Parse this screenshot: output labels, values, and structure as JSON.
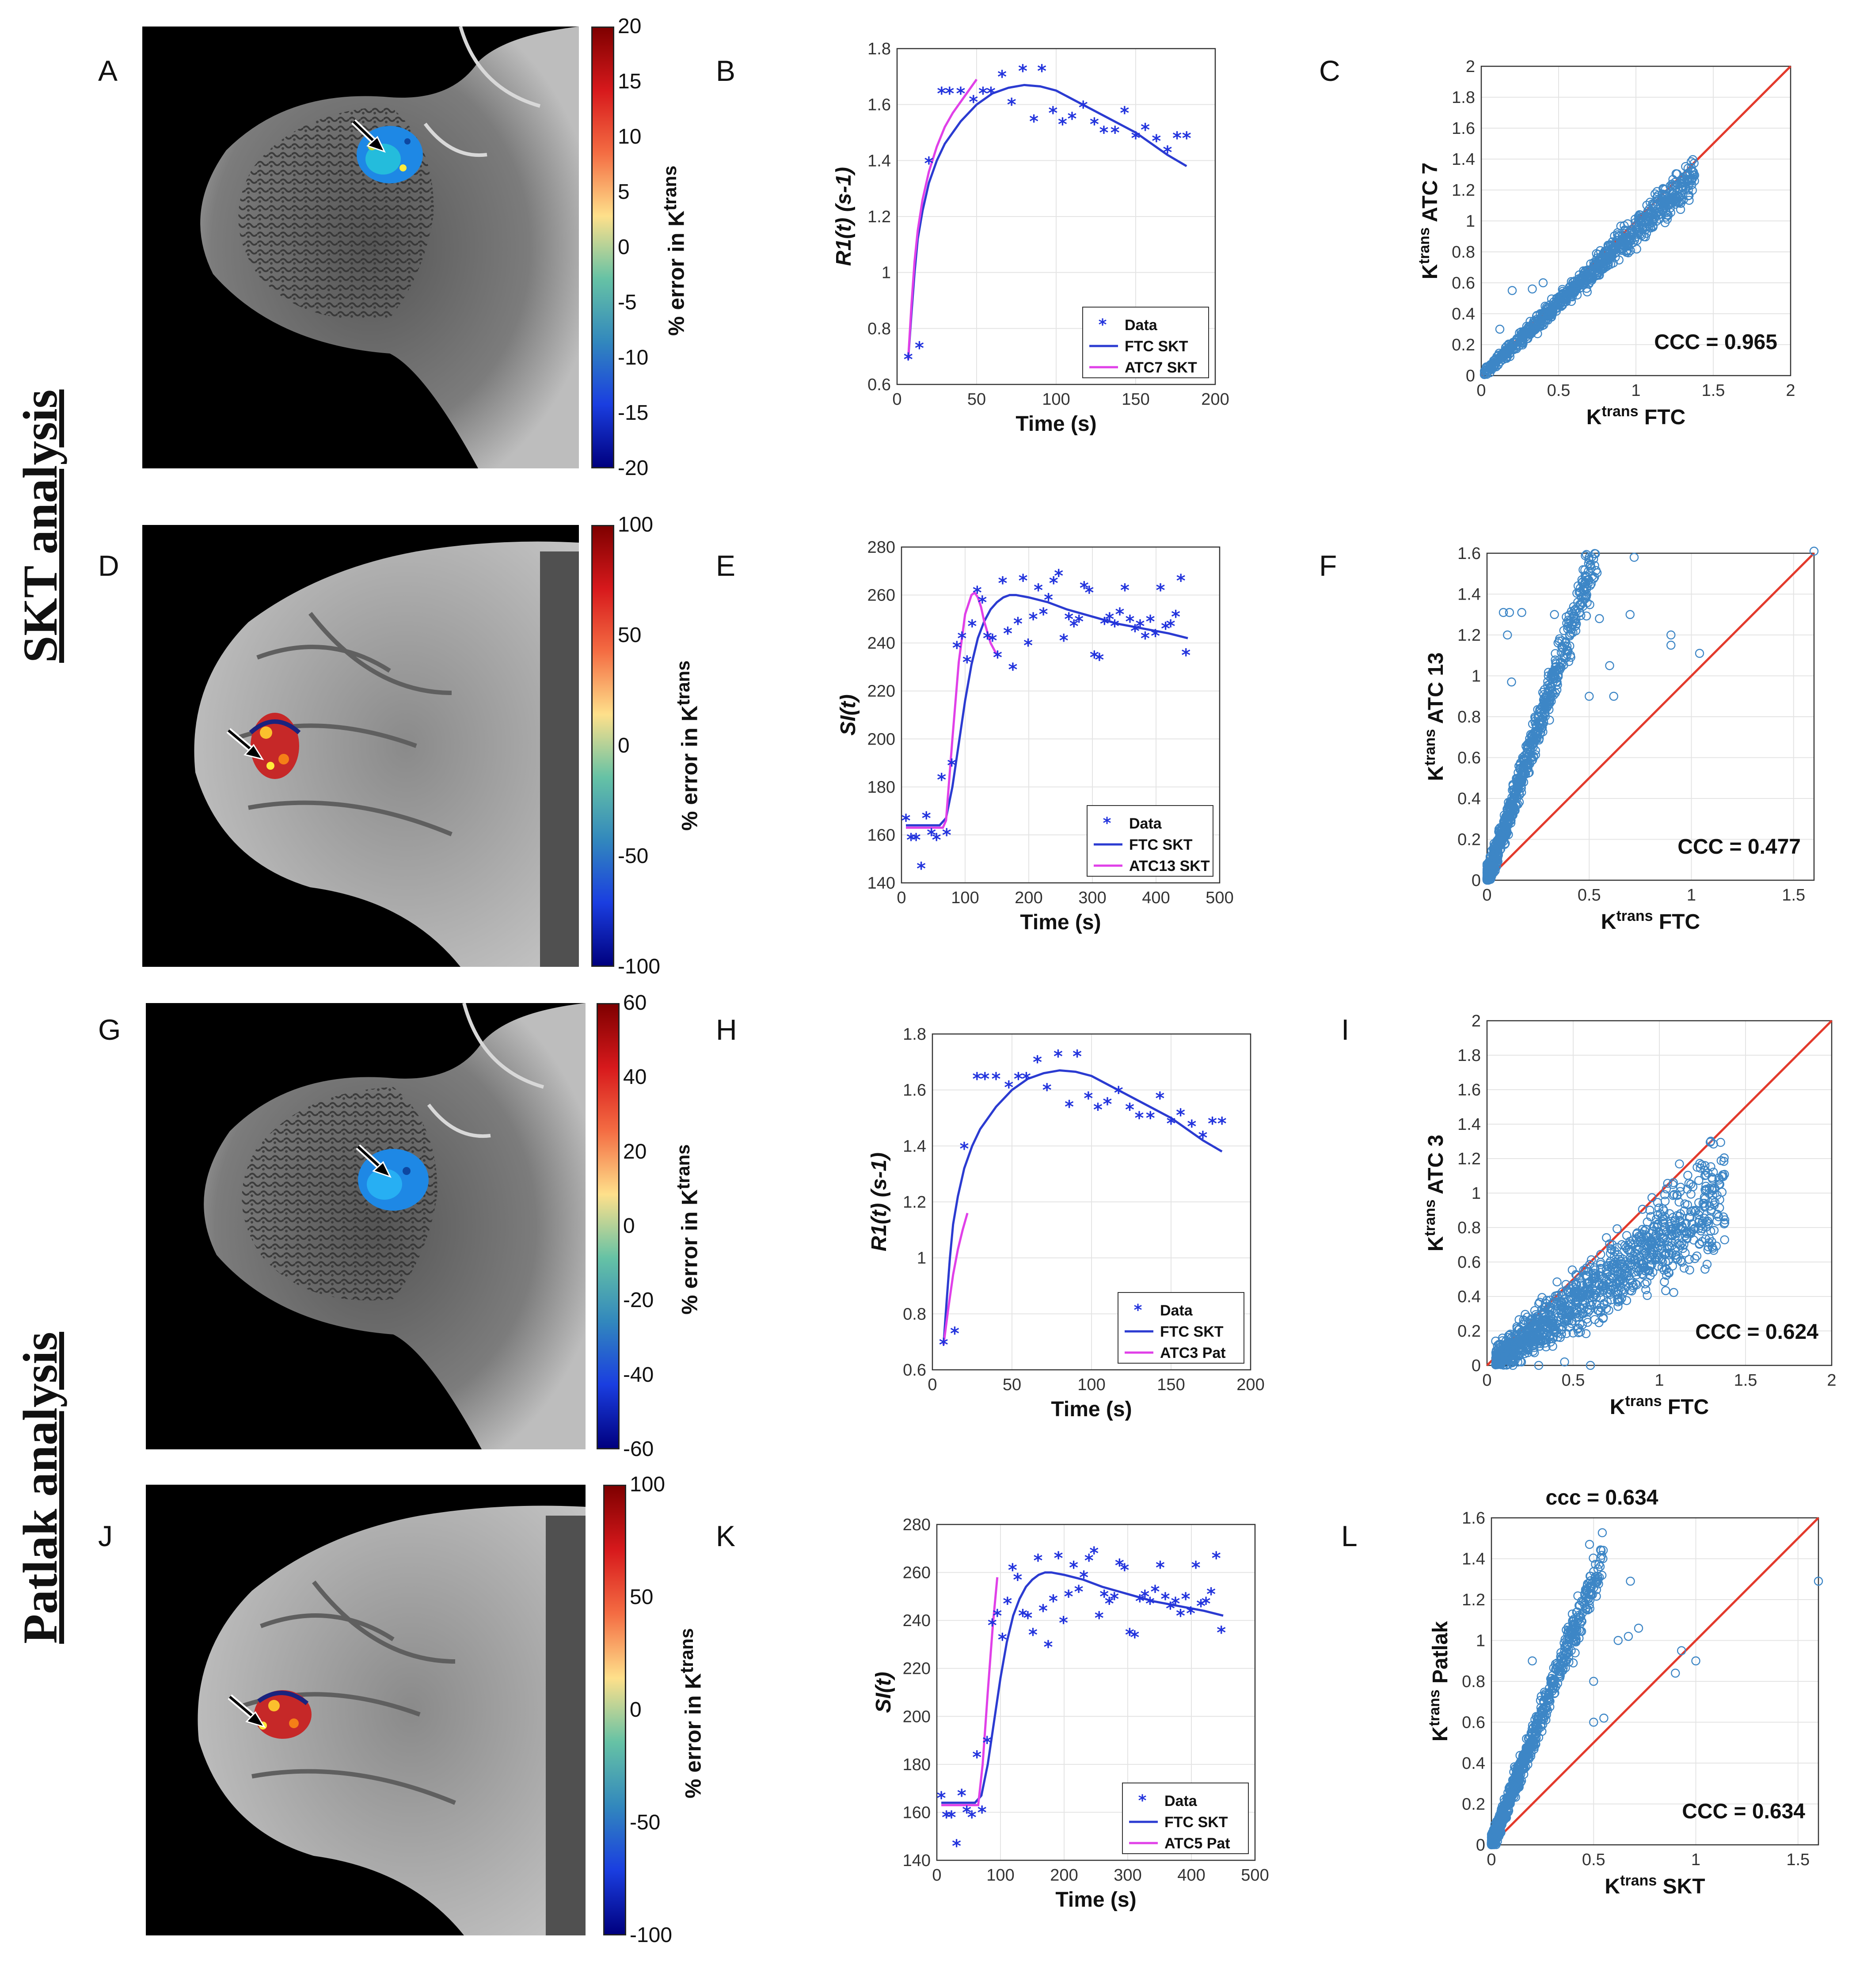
{
  "panel_letters": [
    "A",
    "B",
    "C",
    "D",
    "E",
    "F",
    "G",
    "H",
    "I",
    "J",
    "K",
    "L"
  ],
  "row_labels": {
    "skt": "SKT analysis",
    "patlak": "Patlak analysis"
  },
  "colorbars": [
    {
      "ticks": [
        "20",
        "15",
        "10",
        "5",
        "0",
        "-5",
        "-10",
        "-15",
        "-20"
      ],
      "label": "% error in K",
      "label_sup": "trans"
    },
    {
      "ticks": [
        "100",
        "50",
        "0",
        "-50",
        "-100"
      ],
      "label": "% error in K",
      "label_sup": "trans"
    },
    {
      "ticks": [
        "60",
        "40",
        "20",
        "0",
        "-20",
        "-40",
        "-60"
      ],
      "label": "% error in K",
      "label_sup": "trans"
    },
    {
      "ticks": [
        "100",
        "50",
        "0",
        "-50",
        "-100"
      ],
      "label": "% error in K",
      "label_sup": "trans"
    }
  ],
  "colors": {
    "data": "#2233dd",
    "ftc": "#2b3bd1",
    "atc": "#e040e8",
    "scatter": "#3d86c6",
    "identity": "#e33a2c"
  },
  "icons": [
    "arrow-icon",
    "mri-breast-image"
  ],
  "chart_data": [
    {
      "id": "B",
      "type": "line",
      "xlabel": "Time (s)",
      "ylabel": "R1(t) (s-1)",
      "xlim": [
        0,
        200
      ],
      "ylim": [
        0.6,
        1.8
      ],
      "xticks": [
        0,
        50,
        100,
        150,
        200
      ],
      "yticks": [
        0.6,
        0.8,
        1,
        1.2,
        1.4,
        1.6,
        1.8
      ],
      "legend": [
        "Data",
        "FTC SKT",
        "ATC7 SKT"
      ],
      "points_x": [
        7,
        14,
        20,
        28,
        33,
        40,
        48,
        54,
        59,
        66,
        72,
        79,
        86,
        91,
        98,
        104,
        110,
        117,
        124,
        130,
        137,
        143,
        150,
        156,
        163,
        170,
        176,
        182
      ],
      "points_y": [
        0.69,
        0.73,
        1.39,
        1.64,
        1.64,
        1.64,
        1.61,
        1.64,
        1.64,
        1.7,
        1.6,
        1.72,
        1.54,
        1.72,
        1.57,
        1.53,
        1.55,
        1.59,
        1.53,
        1.5,
        1.5,
        1.57,
        1.48,
        1.51,
        1.47,
        1.43,
        1.48,
        1.48
      ],
      "ftc_x": [
        7,
        9,
        11,
        13,
        16,
        20,
        25,
        30,
        40,
        50,
        60,
        70,
        80,
        90,
        100,
        110,
        120,
        130,
        140,
        150,
        160,
        170,
        182
      ],
      "ftc_y": [
        0.69,
        0.85,
        1.0,
        1.12,
        1.22,
        1.32,
        1.4,
        1.46,
        1.54,
        1.6,
        1.64,
        1.66,
        1.67,
        1.665,
        1.65,
        1.62,
        1.59,
        1.56,
        1.53,
        1.5,
        1.46,
        1.42,
        1.38
      ],
      "atc_x": [
        7,
        9,
        11,
        13,
        16,
        20,
        25,
        30,
        35,
        40,
        45,
        50
      ],
      "atc_y": [
        0.69,
        0.88,
        1.04,
        1.15,
        1.26,
        1.36,
        1.45,
        1.52,
        1.57,
        1.61,
        1.65,
        1.69
      ]
    },
    {
      "id": "C",
      "type": "scatter",
      "xlabel": "K",
      "xlabel_sup": "trans",
      "xlabel_tail": " FTC",
      "ylabel": "K",
      "ylabel_sup": "trans",
      "ylabel_tail": " ATC 7",
      "xlim": [
        0,
        2
      ],
      "ylim": [
        0,
        2
      ],
      "xticks": [
        0,
        0.5,
        1,
        1.5,
        2
      ],
      "yticks": [
        0,
        0.2,
        0.4,
        0.6,
        0.8,
        1,
        1.2,
        1.4,
        1.6,
        1.8,
        2
      ],
      "ccc": "CCC = 0.965",
      "seed": 11,
      "n": 800,
      "xmax": 1.38,
      "xmin": 0.02,
      "xpower": 1.0,
      "slope": 0.94,
      "noise": 0.035,
      "outliers": [
        [
          0.12,
          0.3
        ],
        [
          0.2,
          0.55
        ],
        [
          0.4,
          0.6
        ],
        [
          0.33,
          0.56
        ]
      ]
    },
    {
      "id": "E",
      "type": "line",
      "xlabel": "Time (s)",
      "ylabel": "SI(t)",
      "xlim": [
        0,
        500
      ],
      "ylim": [
        140,
        280
      ],
      "xticks": [
        0,
        100,
        200,
        300,
        400,
        500
      ],
      "yticks": [
        140,
        160,
        180,
        200,
        220,
        240,
        260,
        280
      ],
      "legend": [
        "Data",
        "FTC SKT",
        "ATC13 SKT"
      ],
      "points_x": [
        7,
        15,
        23,
        31,
        39,
        47,
        55,
        63,
        71,
        79,
        87,
        95,
        103,
        111,
        119,
        127,
        135,
        143,
        151,
        159,
        167,
        175,
        183,
        191,
        199,
        207,
        215,
        223,
        231,
        239,
        247,
        255,
        263,
        271,
        279,
        287,
        295,
        303,
        311,
        319,
        327,
        335,
        343,
        351,
        359,
        367,
        375,
        383,
        391,
        399,
        407,
        415,
        423,
        431,
        439,
        447
      ],
      "points_y": [
        166,
        158,
        158,
        146,
        167,
        160,
        158,
        183,
        160,
        189,
        238,
        242,
        232,
        247,
        261,
        257,
        242,
        241,
        234,
        265,
        244,
        229,
        248,
        266,
        239,
        250,
        262,
        252,
        258,
        265,
        268,
        241,
        250,
        247,
        249,
        263,
        261,
        234,
        233,
        248,
        250,
        247,
        252,
        262,
        249,
        245,
        247,
        242,
        249,
        243,
        262,
        246,
        247,
        251,
        266,
        235
      ],
      "ftc_x": [
        7,
        40,
        60,
        70,
        80,
        90,
        100,
        110,
        120,
        130,
        140,
        150,
        160,
        170,
        180,
        200,
        230,
        260,
        300,
        340,
        380,
        420,
        450
      ],
      "ftc_y": [
        164,
        164,
        164,
        167,
        180,
        198,
        216,
        231,
        242,
        249,
        254,
        257,
        259,
        260,
        260,
        259,
        257,
        254,
        251,
        248,
        246,
        244,
        242
      ],
      "atc_x": [
        7,
        40,
        65,
        70,
        80,
        90,
        100,
        110,
        115,
        120,
        125,
        130,
        140,
        150
      ],
      "atc_y": [
        163,
        163,
        163,
        166,
        200,
        232,
        252,
        260,
        261,
        259,
        255,
        249,
        240,
        235
      ]
    },
    {
      "id": "F",
      "type": "scatter",
      "xlabel": "K",
      "xlabel_sup": "trans",
      "xlabel_tail": " FTC",
      "ylabel": "K",
      "ylabel_sup": "trans",
      "ylabel_tail": " ATC 13",
      "xlim": [
        0,
        1.6
      ],
      "ylim": [
        0,
        1.6
      ],
      "xticks": [
        0,
        0.5,
        1,
        1.5
      ],
      "yticks": [
        0,
        0.2,
        0.4,
        0.6,
        0.8,
        1,
        1.2,
        1.4,
        1.6
      ],
      "ccc": "CCC = 0.477",
      "seed": 23,
      "n": 900,
      "xmax": 0.55,
      "xmin": 0.0,
      "xpower": 2.4,
      "slope": 3.0,
      "noise": 0.07,
      "outliers": [
        [
          0.72,
          1.58
        ],
        [
          1.6,
          1.61
        ],
        [
          0.08,
          1.31
        ],
        [
          0.11,
          1.31
        ],
        [
          0.17,
          1.31
        ],
        [
          0.33,
          1.3
        ],
        [
          0.55,
          1.28
        ],
        [
          0.9,
          1.2
        ],
        [
          0.9,
          1.15
        ],
        [
          1.04,
          1.11
        ],
        [
          0.4,
          1.07
        ],
        [
          0.6,
          1.05
        ],
        [
          0.1,
          1.2
        ],
        [
          0.3,
          1.0
        ],
        [
          0.7,
          1.3
        ],
        [
          0.62,
          0.9
        ],
        [
          0.5,
          0.9
        ],
        [
          0.12,
          0.97
        ]
      ]
    },
    {
      "id": "H",
      "type": "line",
      "xlabel": "Time (s)",
      "ylabel": "R1(t) (s-1)",
      "xlim": [
        0,
        200
      ],
      "ylim": [
        0.6,
        1.8
      ],
      "xticks": [
        0,
        50,
        100,
        150,
        200
      ],
      "yticks": [
        0.6,
        0.8,
        1,
        1.2,
        1.4,
        1.6,
        1.8
      ],
      "legend": [
        "Data",
        "FTC SKT",
        "ATC3 Pat"
      ],
      "points_x": [
        7,
        14,
        20,
        28,
        33,
        40,
        48,
        54,
        59,
        66,
        72,
        79,
        86,
        91,
        98,
        104,
        110,
        117,
        124,
        130,
        137,
        143,
        150,
        156,
        163,
        170,
        176,
        182
      ],
      "points_y": [
        0.69,
        0.73,
        1.39,
        1.64,
        1.64,
        1.64,
        1.61,
        1.64,
        1.64,
        1.7,
        1.6,
        1.72,
        1.54,
        1.72,
        1.57,
        1.53,
        1.55,
        1.59,
        1.53,
        1.5,
        1.5,
        1.57,
        1.48,
        1.51,
        1.47,
        1.43,
        1.48,
        1.48
      ],
      "ftc_x": [
        7,
        9,
        11,
        13,
        16,
        20,
        25,
        30,
        40,
        50,
        60,
        70,
        80,
        90,
        100,
        110,
        120,
        130,
        140,
        150,
        160,
        170,
        182
      ],
      "ftc_y": [
        0.69,
        0.85,
        1.0,
        1.12,
        1.22,
        1.32,
        1.4,
        1.46,
        1.54,
        1.6,
        1.64,
        1.66,
        1.67,
        1.665,
        1.65,
        1.62,
        1.59,
        1.56,
        1.53,
        1.5,
        1.46,
        1.42,
        1.38
      ],
      "atc_x": [
        7,
        10,
        13,
        16,
        19,
        22
      ],
      "atc_y": [
        0.69,
        0.82,
        0.94,
        1.03,
        1.1,
        1.16
      ]
    },
    {
      "id": "I",
      "type": "scatter",
      "xlabel": "K",
      "xlabel_sup": "trans",
      "xlabel_tail": " FTC",
      "ylabel": "K",
      "ylabel_sup": "trans",
      "ylabel_tail": " ATC 3",
      "xlim": [
        0,
        2
      ],
      "ylim": [
        0,
        2
      ],
      "xticks": [
        0,
        0.5,
        1,
        1.5,
        2
      ],
      "yticks": [
        0,
        0.2,
        0.4,
        0.6,
        0.8,
        1,
        1.2,
        1.4,
        1.6,
        1.8,
        2
      ],
      "ccc": "CCC = 0.624",
      "seed": 37,
      "n": 1100,
      "xmax": 1.38,
      "xmin": 0.05,
      "xpower": 1.3,
      "slope": 0.72,
      "noise": 0.09,
      "outliers": [
        [
          0.2,
          0.02
        ],
        [
          0.3,
          0.0
        ],
        [
          0.45,
          0.02
        ],
        [
          0.6,
          0.0
        ],
        [
          0.15,
          0.0
        ]
      ]
    },
    {
      "id": "K",
      "type": "line",
      "xlabel": "Time (s)",
      "ylabel": "SI(t)",
      "xlim": [
        0,
        500
      ],
      "ylim": [
        140,
        280
      ],
      "xticks": [
        0,
        100,
        200,
        300,
        400,
        500
      ],
      "yticks": [
        140,
        160,
        180,
        200,
        220,
        240,
        260,
        280
      ],
      "legend": [
        "Data",
        "FTC SKT",
        "ATC5 Pat"
      ],
      "points_x": [
        7,
        15,
        23,
        31,
        39,
        47,
        55,
        63,
        71,
        79,
        87,
        95,
        103,
        111,
        119,
        127,
        135,
        143,
        151,
        159,
        167,
        175,
        183,
        191,
        199,
        207,
        215,
        223,
        231,
        239,
        247,
        255,
        263,
        271,
        279,
        287,
        295,
        303,
        311,
        319,
        327,
        335,
        343,
        351,
        359,
        367,
        375,
        383,
        391,
        399,
        407,
        415,
        423,
        431,
        439,
        447
      ],
      "points_y": [
        166,
        158,
        158,
        146,
        167,
        160,
        158,
        183,
        160,
        189,
        238,
        242,
        232,
        247,
        261,
        257,
        242,
        241,
        234,
        265,
        244,
        229,
        248,
        266,
        239,
        250,
        262,
        252,
        258,
        265,
        268,
        241,
        250,
        247,
        249,
        263,
        261,
        234,
        233,
        248,
        250,
        247,
        252,
        262,
        249,
        245,
        247,
        242,
        249,
        243,
        262,
        246,
        247,
        251,
        266,
        235
      ],
      "ftc_x": [
        7,
        40,
        60,
        70,
        80,
        90,
        100,
        110,
        120,
        130,
        140,
        150,
        160,
        170,
        180,
        200,
        230,
        260,
        300,
        340,
        380,
        420,
        450
      ],
      "ftc_y": [
        164,
        164,
        164,
        167,
        180,
        198,
        216,
        231,
        242,
        249,
        254,
        257,
        259,
        260,
        260,
        259,
        257,
        254,
        251,
        248,
        246,
        244,
        242
      ],
      "atc_x": [
        7,
        40,
        65,
        72,
        80,
        88,
        95
      ],
      "atc_y": [
        163,
        163,
        163,
        180,
        210,
        238,
        258
      ]
    },
    {
      "id": "L",
      "type": "scatter",
      "title": "ccc = 0.634",
      "xlabel": "K",
      "xlabel_sup": "trans",
      "xlabel_tail": " SKT",
      "ylabel": "K",
      "ylabel_sup": "trans",
      "ylabel_tail": " Patlak",
      "xlim": [
        0,
        1.6
      ],
      "ylim": [
        0,
        1.6
      ],
      "xticks": [
        0,
        0.5,
        1,
        1.5
      ],
      "yticks": [
        0,
        0.2,
        0.4,
        0.6,
        0.8,
        1,
        1.2,
        1.4,
        1.6
      ],
      "ccc": "CCC = 0.634",
      "seed": 53,
      "n": 900,
      "xmax": 0.55,
      "xmin": 0.0,
      "xpower": 2.3,
      "slope": 2.6,
      "noise": 0.06,
      "outliers": [
        [
          0.48,
          1.47
        ],
        [
          1.6,
          1.29
        ],
        [
          0.68,
          1.29
        ],
        [
          0.62,
          1.0
        ],
        [
          0.67,
          1.02
        ],
        [
          0.72,
          1.06
        ],
        [
          0.93,
          0.95
        ],
        [
          1.0,
          0.9
        ],
        [
          0.9,
          0.84
        ],
        [
          0.4,
          0.89
        ],
        [
          0.3,
          0.8
        ],
        [
          0.5,
          0.8
        ],
        [
          0.5,
          0.6
        ],
        [
          0.55,
          0.62
        ],
        [
          0.2,
          0.9
        ]
      ]
    }
  ]
}
